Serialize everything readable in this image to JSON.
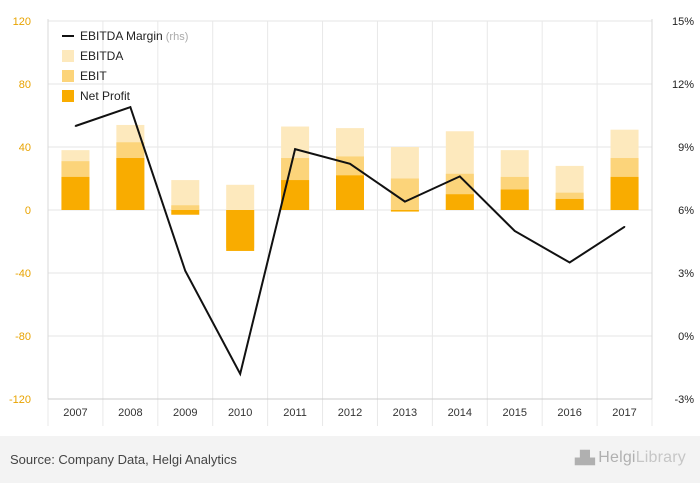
{
  "chart_data": {
    "type": "bar",
    "categories": [
      "2007",
      "2008",
      "2009",
      "2010",
      "2011",
      "2012",
      "2013",
      "2014",
      "2015",
      "2016",
      "2017"
    ],
    "series": [
      {
        "name": "EBITDA",
        "type": "bar",
        "axis": "left",
        "color": "#fde9bd",
        "values": [
          38,
          54,
          19,
          16,
          53,
          52,
          40,
          50,
          38,
          28,
          51
        ]
      },
      {
        "name": "EBIT",
        "type": "bar",
        "axis": "left",
        "color": "#fcd47a",
        "values": [
          31,
          43,
          3,
          -24,
          33,
          34,
          20,
          23,
          21,
          11,
          33
        ]
      },
      {
        "name": "Net Profit",
        "type": "bar",
        "axis": "left",
        "color": "#f9ac00",
        "values": [
          21,
          33,
          -3,
          -26,
          19,
          22,
          -1,
          10,
          13,
          7,
          21
        ]
      },
      {
        "name": "EBITDA Margin",
        "note": "(rhs)",
        "type": "line",
        "axis": "right",
        "color": "#111111",
        "values": [
          10.0,
          10.9,
          3.1,
          -1.8,
          8.9,
          8.2,
          6.4,
          7.6,
          5.0,
          3.5,
          5.2
        ]
      }
    ],
    "left_axis": {
      "min": -120,
      "max": 120,
      "ticks": [
        "120",
        "80",
        "40",
        "0",
        "-40",
        "-80",
        "-120"
      ]
    },
    "right_axis": {
      "min": -3,
      "max": 15,
      "ticks": [
        "15%",
        "12%",
        "9%",
        "6%",
        "3%",
        "0%",
        "-3%"
      ]
    },
    "grid": true,
    "legend_position": "top-left"
  },
  "footer": {
    "source": "Source: Company Data, Helgi Analytics",
    "logo_main": "Helgi",
    "logo_sub": "Library"
  }
}
